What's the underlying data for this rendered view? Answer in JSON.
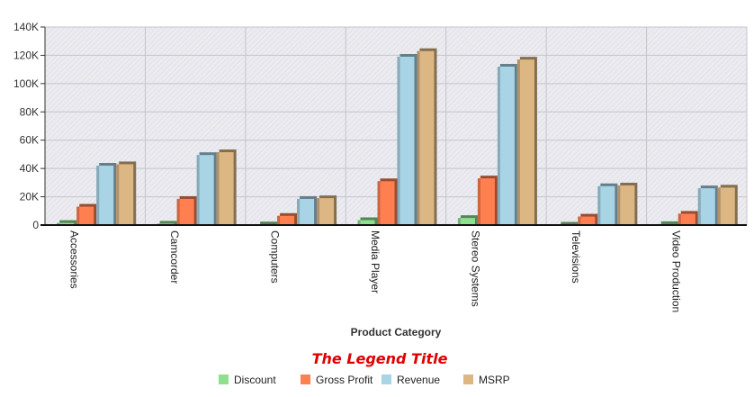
{
  "chart_data": {
    "type": "bar",
    "xlabel": "Product Category",
    "ylabel": "",
    "ylim": [
      0,
      140000
    ],
    "ytick_step": 20000,
    "ytick_labels": [
      "0",
      "20K",
      "40K",
      "60K",
      "80K",
      "100K",
      "120K",
      "140K"
    ],
    "grid": true,
    "legend_position": "bottom",
    "legend_title": "The Legend Title",
    "categories": [
      "Accessories",
      "Camcorder",
      "Computers",
      "Media Player",
      "Stereo Systems",
      "Televisions",
      "Video Production"
    ],
    "series": [
      {
        "name": "Discount",
        "color": "#8ee08e",
        "values": [
          1500,
          1000,
          500,
          3500,
          5000,
          300,
          700
        ]
      },
      {
        "name": "Gross Profit",
        "color": "#ff7f50",
        "values": [
          13000,
          18500,
          6500,
          31000,
          33000,
          6000,
          8000
        ]
      },
      {
        "name": "Revenue",
        "color": "#a8d4e6",
        "values": [
          42000,
          49500,
          18500,
          119000,
          112000,
          27500,
          26000
        ]
      },
      {
        "name": "MSRP",
        "color": "#dcb784",
        "values": [
          43000,
          51500,
          19000,
          123000,
          117000,
          28000,
          26500
        ]
      }
    ]
  }
}
